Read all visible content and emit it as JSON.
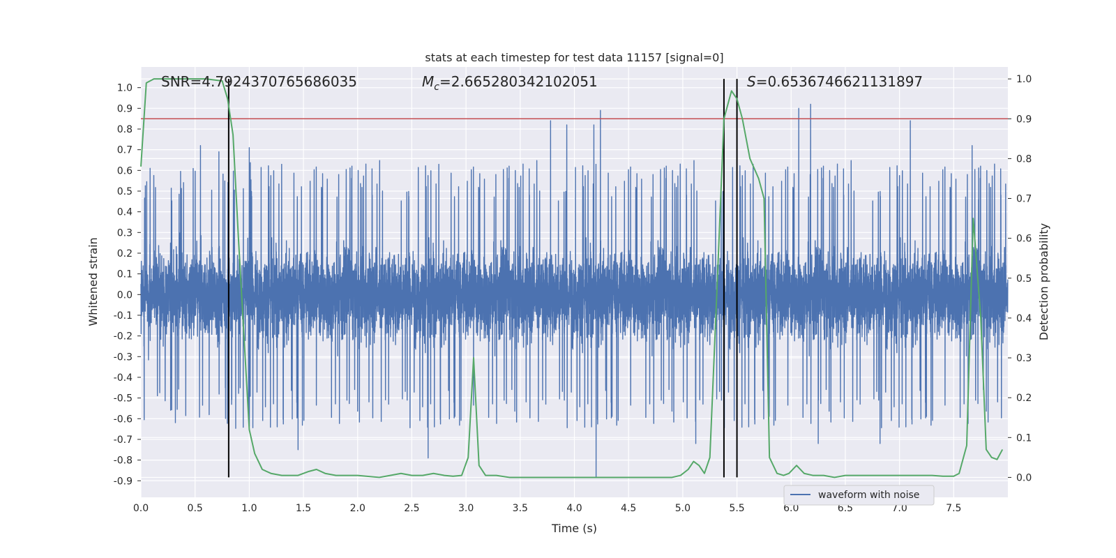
{
  "chart_data": {
    "type": "line",
    "title": "stats at each timestep for test data 11157 [signal=0]",
    "xlabel": "Time (s)",
    "ylabel": "Whitened strain",
    "y2label": "Detection probability",
    "xlim": [
      0,
      8
    ],
    "ylim": [
      -0.98,
      1.1
    ],
    "y2lim": [
      -0.05,
      1.03
    ],
    "xticks": [
      "0.0",
      "0.5",
      "1.0",
      "1.5",
      "2.0",
      "2.5",
      "3.0",
      "3.5",
      "4.0",
      "4.5",
      "5.0",
      "5.5",
      "6.0",
      "6.5",
      "7.0",
      "7.5"
    ],
    "yticks": [
      "1.0",
      "0.9",
      "0.8",
      "0.7",
      "0.6",
      "0.5",
      "0.4",
      "0.3",
      "0.2",
      "0.1",
      "0.0",
      "-0.1",
      "-0.2",
      "-0.3",
      "-0.4",
      "-0.5",
      "-0.6",
      "-0.7",
      "-0.8",
      "-0.9"
    ],
    "y2ticks": [
      "1.0",
      "0.9",
      "0.8",
      "0.7",
      "0.6",
      "0.5",
      "0.4",
      "0.3",
      "0.2",
      "0.1",
      "0.0"
    ],
    "grid": true,
    "legend": {
      "position": "bottom-right",
      "entries": [
        "waveform with noise"
      ]
    },
    "annotations": {
      "snr": "SNR=4.7924370765686035",
      "mc_symbol": "M",
      "mc_sub": "c",
      "mc_value": "=2.665280342102051",
      "s_symbol": "S",
      "s_value": "=0.6536746621131897"
    },
    "threshold": {
      "axis": "probability",
      "value": 0.9,
      "color": "#c44e52"
    },
    "vlines": [
      0.81,
      5.38,
      5.5
    ],
    "waveform": {
      "name": "waveform with noise",
      "color": "#4c72b0",
      "samples_per_second": 1024,
      "typical_min": -0.45,
      "typical_max": 0.45,
      "peaks": [
        {
          "x": 0.55,
          "y": 0.72
        },
        {
          "x": 0.72,
          "y": 0.69
        },
        {
          "x": 1.0,
          "y": 0.71
        },
        {
          "x": 3.78,
          "y": 0.84
        },
        {
          "x": 3.93,
          "y": 0.82
        },
        {
          "x": 4.18,
          "y": 0.82
        },
        {
          "x": 4.24,
          "y": 0.89
        },
        {
          "x": 6.07,
          "y": 0.9
        },
        {
          "x": 6.18,
          "y": 0.92
        },
        {
          "x": 7.1,
          "y": 0.84
        },
        {
          "x": 7.67,
          "y": 0.72
        }
      ],
      "troughs": [
        {
          "x": 0.81,
          "y": -0.74
        },
        {
          "x": 1.45,
          "y": -0.75
        },
        {
          "x": 2.65,
          "y": -0.79
        },
        {
          "x": 4.2,
          "y": -0.88
        },
        {
          "x": 5.12,
          "y": -0.72
        },
        {
          "x": 6.25,
          "y": -0.72
        },
        {
          "x": 6.82,
          "y": -0.72
        }
      ]
    },
    "probability": {
      "name": "detection probability",
      "color": "#55a868",
      "x": [
        0.0,
        0.05,
        0.12,
        0.3,
        0.5,
        0.6,
        0.75,
        0.8,
        0.85,
        0.9,
        1.0,
        1.05,
        1.12,
        1.2,
        1.3,
        1.45,
        1.55,
        1.62,
        1.7,
        1.8,
        2.0,
        2.2,
        2.3,
        2.4,
        2.5,
        2.6,
        2.7,
        2.8,
        2.88,
        2.96,
        3.02,
        3.07,
        3.12,
        3.18,
        3.28,
        3.4,
        3.6,
        3.8,
        4.0,
        4.2,
        4.4,
        4.6,
        4.8,
        4.9,
        4.98,
        5.05,
        5.1,
        5.15,
        5.2,
        5.25,
        5.32,
        5.38,
        5.45,
        5.5,
        5.55,
        5.62,
        5.7,
        5.75,
        5.8,
        5.87,
        5.93,
        5.98,
        6.05,
        6.12,
        6.2,
        6.3,
        6.4,
        6.5,
        6.6,
        6.7,
        6.8,
        6.9,
        7.0,
        7.1,
        7.2,
        7.3,
        7.4,
        7.5,
        7.55,
        7.62,
        7.68,
        7.75,
        7.8,
        7.85,
        7.9,
        7.95
      ],
      "y": [
        0.78,
        0.99,
        1.0,
        1.0,
        1.0,
        1.0,
        0.995,
        0.95,
        0.86,
        0.6,
        0.12,
        0.06,
        0.02,
        0.01,
        0.005,
        0.005,
        0.015,
        0.02,
        0.01,
        0.005,
        0.005,
        0.0,
        0.005,
        0.01,
        0.005,
        0.005,
        0.01,
        0.005,
        0.003,
        0.005,
        0.05,
        0.3,
        0.03,
        0.005,
        0.005,
        0.0,
        0.0,
        0.0,
        0.0,
        0.0,
        0.0,
        0.0,
        0.0,
        0.0,
        0.005,
        0.02,
        0.04,
        0.03,
        0.01,
        0.05,
        0.5,
        0.9,
        0.97,
        0.95,
        0.9,
        0.8,
        0.75,
        0.7,
        0.05,
        0.01,
        0.005,
        0.01,
        0.03,
        0.01,
        0.005,
        0.005,
        0.0,
        0.005,
        0.005,
        0.005,
        0.005,
        0.005,
        0.005,
        0.005,
        0.005,
        0.005,
        0.003,
        0.003,
        0.01,
        0.08,
        0.65,
        0.4,
        0.07,
        0.05,
        0.045,
        0.07
      ]
    }
  }
}
